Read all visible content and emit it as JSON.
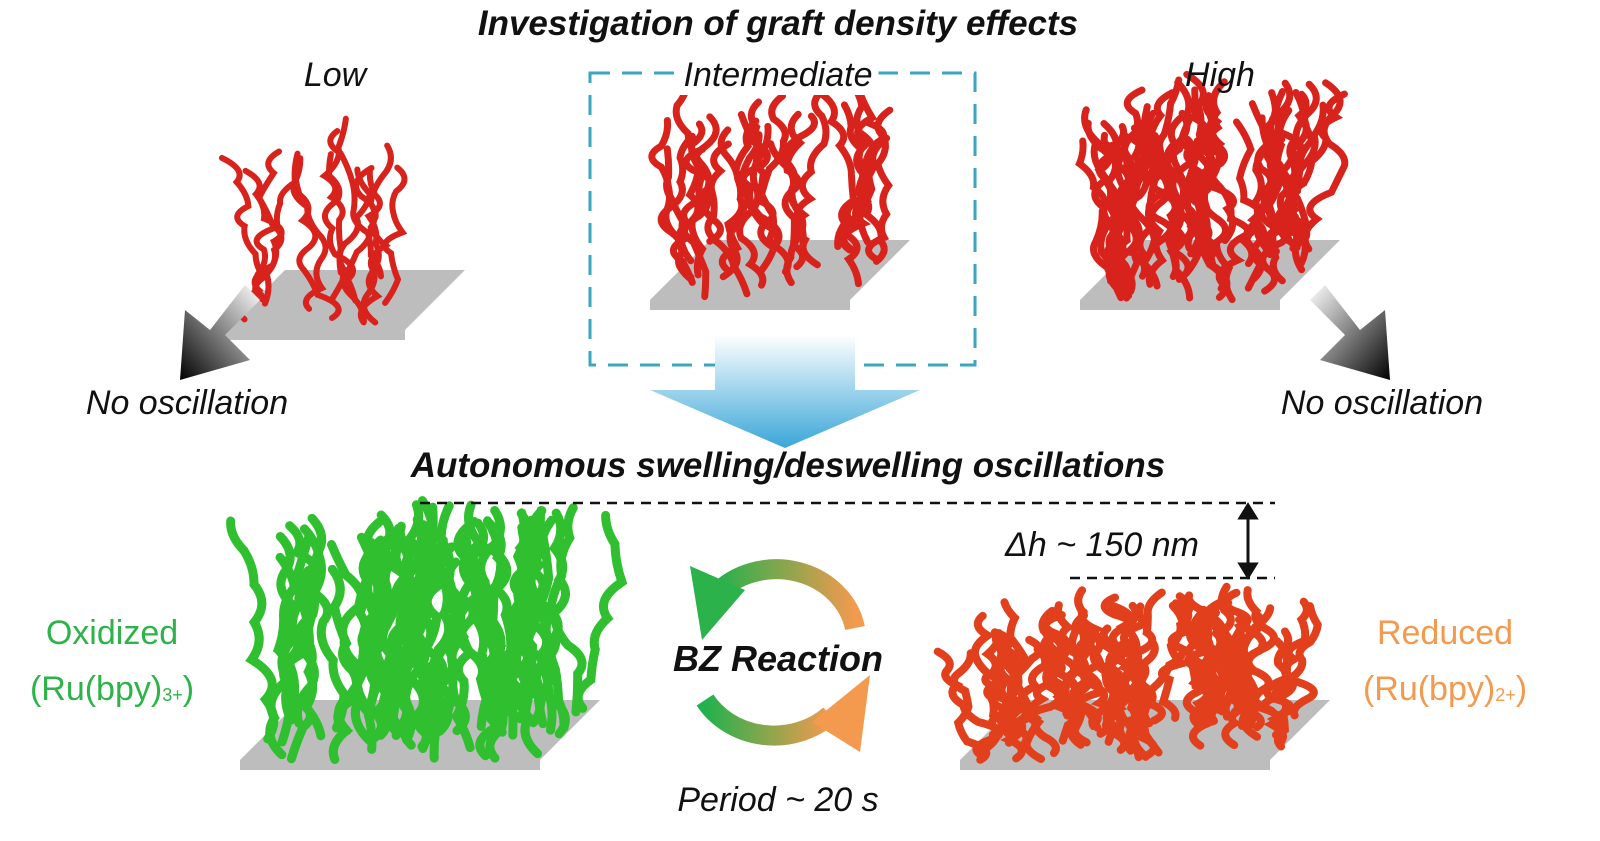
{
  "title": "Investigation of graft density effects",
  "densities": [
    {
      "label": "Low",
      "outcome": "No oscillation"
    },
    {
      "label": "Intermediate"
    },
    {
      "label": "High",
      "outcome": "No oscillation"
    }
  ],
  "result_title": "Autonomous swelling/deswelling oscillations",
  "height_change": "Δh ~ 150 nm",
  "oxidized": {
    "label": "Oxidized",
    "formula": "(Ru(bpy)",
    "charge": "3+",
    "close": ")",
    "color": "#2db34a"
  },
  "reduced": {
    "label": "Reduced",
    "formula": "(Ru(bpy)",
    "charge": "2+",
    "close": ")",
    "color": "#f39a4e"
  },
  "reaction": {
    "label": "BZ Reaction",
    "period": "Period ~ 20 s"
  },
  "colors": {
    "brush_red": "#d8231c",
    "brush_green": "#2fbf2f",
    "brush_reduced": "#e2401c",
    "highlight_box": "#3aa6c0",
    "substrate": "#bdbdbd"
  }
}
